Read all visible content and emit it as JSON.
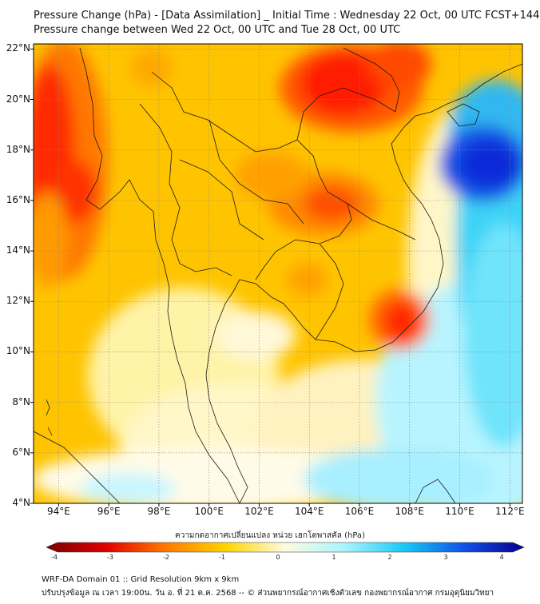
{
  "header": {
    "title_line1": "Pressure Change (hPa) - [Data Assimilation] _ Initial Time : Wednesday 22 Oct, 00 UTC FCST+144",
    "title_line2": "Pressure change between Wed 22 Oct, 00 UTC and Tue 28 Oct, 00 UTC"
  },
  "map": {
    "lat_labels": [
      "22°N",
      "20°N",
      "18°N",
      "16°N",
      "14°N",
      "12°N",
      "10°N",
      "8°N",
      "6°N",
      "4°N"
    ],
    "lon_labels": [
      "94°E",
      "96°E",
      "98°E",
      "100°E",
      "102°E",
      "104°E",
      "106°E",
      "108°E",
      "110°E",
      "112°E"
    ],
    "lat_values": [
      22,
      20,
      18,
      16,
      14,
      12,
      10,
      8,
      6,
      4
    ],
    "lon_values": [
      94,
      96,
      98,
      100,
      102,
      104,
      106,
      108,
      110,
      112
    ],
    "extent": {
      "lon_min": 93.0,
      "lon_max": 112.5,
      "lat_min": 4.0,
      "lat_max": 22.2
    }
  },
  "colorbar": {
    "title": "ความกดอากาศเปลี่ยนแปลง หน่วย เฮกโตพาสคัล (hPa)",
    "ticks": [
      "-4",
      "-3",
      "-2",
      "-1",
      "0",
      "1",
      "2",
      "3",
      "4"
    ],
    "tick_values": [
      -4,
      -3,
      -2,
      -1,
      0,
      1,
      2,
      3,
      4
    ],
    "range": [
      -4,
      4
    ],
    "colors": {
      "neg4": "#7a0000",
      "neg3": "#e00000",
      "neg2": "#ff7a00",
      "neg1": "#ffd400",
      "zero": "#fffbe0",
      "pos1": "#a8f5ff",
      "pos2": "#19c8f5",
      "pos3": "#1050e6",
      "pos4": "#05008c"
    }
  },
  "footer": {
    "line1": "WRF-DA Domain 01 :: Grid Resolution 9km x 9km",
    "line2": "ปรับปรุงข้อมูล ณ เวลา 19:00น. วัน อ. ที่ 21 ต.ค. 2568 -- © ส่วนพยากรณ์อากาศเชิงตัวเลข กองพยากรณ์อากาศ กรมอุตุนิยมวิทยา"
  }
}
